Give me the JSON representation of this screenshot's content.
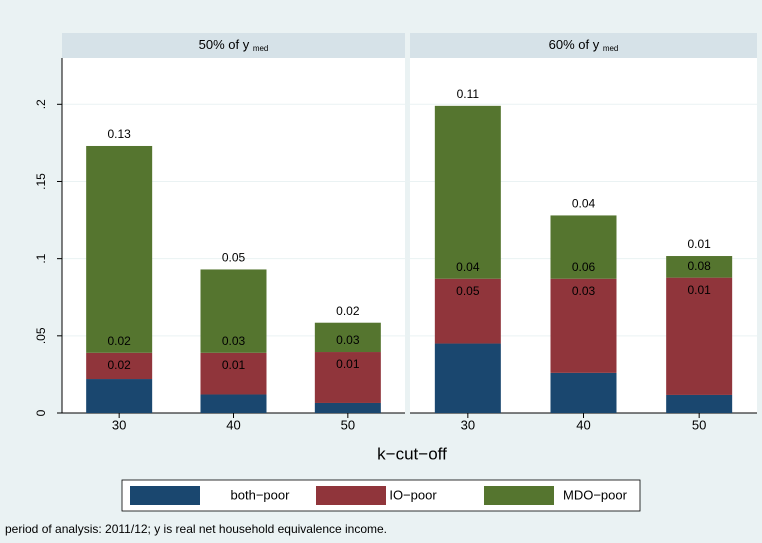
{
  "chart_data": {
    "type": "bar",
    "stacked": true,
    "categories": [
      "30",
      "40",
      "50"
    ],
    "xlabel": "k−cut−off",
    "ylim": [
      0,
      0.23
    ],
    "yticks": [
      0,
      {
        "value": 0.05,
        "label": ".05"
      },
      {
        "value": 0.1,
        "label": ".1"
      },
      {
        "value": 0.15,
        "label": ".15"
      },
      {
        "value": 0.2,
        "label": ".2"
      }
    ],
    "grid": true,
    "series": [
      {
        "name": "both−poor",
        "color": "#1a476f"
      },
      {
        "name": "IO−poor",
        "color": "#90353b"
      },
      {
        "name": "MDO−poor",
        "color": "#55752f"
      }
    ],
    "panels": [
      {
        "title": "50% of y",
        "title_sub": "med",
        "series": [
          {
            "values": [
              0.022,
              0.012,
              0.0065
            ],
            "value_labels": [
              "0.02",
              "0.01",
              "0.01"
            ]
          },
          {
            "values": [
              0.017,
              0.027,
              0.033
            ],
            "value_labels": [
              "0.02",
              "0.03",
              "0.03"
            ]
          },
          {
            "values": [
              0.134,
              0.054,
              0.019
            ],
            "value_labels": [
              "0.13",
              "0.05",
              "0.02"
            ]
          }
        ]
      },
      {
        "title": "60% of y",
        "title_sub": "med",
        "series": [
          {
            "values": [
              0.045,
              0.026,
              0.0117
            ],
            "value_labels": [
              "0.05",
              "0.03",
              "0.01"
            ]
          },
          {
            "values": [
              0.042,
              0.061,
              0.076
            ],
            "value_labels": [
              "0.04",
              "0.06",
              "0.08"
            ]
          },
          {
            "values": [
              0.112,
              0.041,
              0.014
            ],
            "value_labels": [
              "0.11",
              "0.04",
              "0.01"
            ]
          }
        ]
      }
    ],
    "note": "period of analysis: 2011/12; y is real net household equivalence income."
  }
}
